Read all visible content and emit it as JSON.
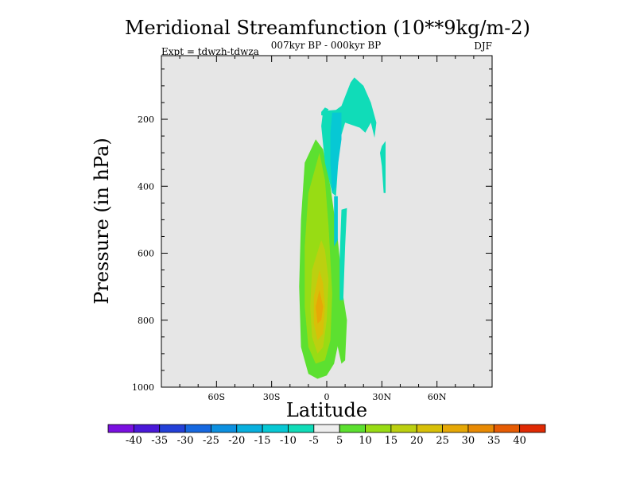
{
  "chart_data": {
    "type": "heatmap",
    "title": "Meridional Streamfunction (10**9kg/m-2)",
    "subtitle": "007kyr BP - 000kyr BP",
    "left_label": "Expt = tdwzh-tdwza",
    "right_label": "DJF",
    "xlabel": "Latitude",
    "ylabel": "Pressure (in hPa)",
    "xlim": [
      -90,
      90
    ],
    "ylim": [
      1000,
      10
    ],
    "y_reversed": true,
    "grid": false,
    "x_ticks": [
      {
        "value": -60,
        "label": "60S"
      },
      {
        "value": -30,
        "label": "30S"
      },
      {
        "value": 0,
        "label": "0"
      },
      {
        "value": 30,
        "label": "30N"
      },
      {
        "value": 60,
        "label": "60N"
      }
    ],
    "y_ticks": [
      {
        "value": 200,
        "label": "200"
      },
      {
        "value": 400,
        "label": "400"
      },
      {
        "value": 600,
        "label": "600"
      },
      {
        "value": 800,
        "label": "800"
      },
      {
        "value": 1000,
        "label": "1000"
      }
    ],
    "background_color": "#e6e6e6",
    "colorbar": {
      "labels": [
        "-40",
        "-35",
        "-30",
        "-25",
        "-20",
        "-15",
        "-10",
        "-5",
        "5",
        "10",
        "15",
        "20",
        "25",
        "30",
        "35",
        "40"
      ],
      "colors": [
        "#7a10e0",
        "#4a18d8",
        "#2340d8",
        "#1668e0",
        "#0c90e0",
        "#08b0de",
        "#07c8d4",
        "#10dcb8",
        "#eeeeee",
        "#5ce030",
        "#98dc14",
        "#bcd010",
        "#d8c008",
        "#e6a806",
        "#e88a04",
        "#e65c04",
        "#e02a04"
      ]
    },
    "regions": [
      {
        "level": "5 to 10",
        "color": "#5ce030",
        "points": [
          [
            -6,
            260
          ],
          [
            -12,
            330
          ],
          [
            -14,
            500
          ],
          [
            -15,
            700
          ],
          [
            -14,
            880
          ],
          [
            -10,
            960
          ],
          [
            -5,
            975
          ],
          [
            0,
            965
          ],
          [
            4,
            930
          ],
          [
            7,
            850
          ],
          [
            9,
            720
          ],
          [
            6,
            560
          ],
          [
            2,
            400
          ],
          [
            -2,
            290
          ]
        ]
      },
      {
        "level": "5 to 10",
        "color": "#5ce030",
        "points": [
          [
            5,
            755
          ],
          [
            9,
            730
          ],
          [
            11,
            800
          ],
          [
            10,
            920
          ],
          [
            8,
            930
          ],
          [
            6,
            880
          ],
          [
            4,
            820
          ]
        ]
      },
      {
        "level": "10 to 15",
        "color": "#98dc14",
        "points": [
          [
            -4,
            300
          ],
          [
            -10,
            420
          ],
          [
            -12,
            580
          ],
          [
            -12,
            760
          ],
          [
            -10,
            880
          ],
          [
            -6,
            930
          ],
          [
            -1,
            920
          ],
          [
            2,
            860
          ],
          [
            3,
            720
          ],
          [
            1,
            520
          ],
          [
            -1,
            380
          ]
        ]
      },
      {
        "level": "15 to 20",
        "color": "#bcd010",
        "points": [
          [
            -3,
            560
          ],
          [
            -8,
            650
          ],
          [
            -9,
            760
          ],
          [
            -8,
            850
          ],
          [
            -5,
            900
          ],
          [
            -2,
            880
          ],
          [
            0,
            800
          ],
          [
            1,
            680
          ],
          [
            -1,
            590
          ]
        ]
      },
      {
        "level": "20 to 25",
        "color": "#d8c008",
        "points": [
          [
            -4,
            650
          ],
          [
            -7,
            730
          ],
          [
            -7,
            810
          ],
          [
            -5,
            860
          ],
          [
            -2,
            840
          ],
          [
            -1,
            760
          ],
          [
            -2,
            690
          ]
        ]
      },
      {
        "level": "25 to 30",
        "color": "#e6a806",
        "points": [
          [
            -4,
            710
          ],
          [
            -6,
            760
          ],
          [
            -5,
            810
          ],
          [
            -3,
            800
          ],
          [
            -2,
            760
          ]
        ]
      },
      {
        "level": "-5 to -10",
        "color": "#10dcb8",
        "points": [
          [
            13,
            90
          ],
          [
            15,
            75
          ],
          [
            20,
            100
          ],
          [
            24,
            150
          ],
          [
            27,
            210
          ],
          [
            26,
            255
          ],
          [
            24,
            210
          ],
          [
            21,
            240
          ],
          [
            18,
            225
          ],
          [
            10,
            210
          ],
          [
            7,
            265
          ],
          [
            5,
            430
          ],
          [
            3,
            420
          ],
          [
            -1,
            330
          ],
          [
            -3,
            220
          ],
          [
            -2,
            175
          ],
          [
            5,
            172
          ],
          [
            8,
            160
          ]
        ]
      },
      {
        "level": "-5 to -10",
        "color": "#10dcb8",
        "points": [
          [
            -3,
            178
          ],
          [
            -1,
            165
          ],
          [
            1,
            170
          ],
          [
            -1,
            190
          ],
          [
            -3,
            188
          ]
        ]
      },
      {
        "level": "-5 to -10",
        "color": "#10dcb8",
        "points": [
          [
            8,
            470
          ],
          [
            11,
            465
          ],
          [
            10,
            580
          ],
          [
            9,
            740
          ],
          [
            7,
            740
          ],
          [
            7,
            620
          ]
        ]
      },
      {
        "level": "-5 to -10",
        "color": "#10dcb8",
        "points": [
          [
            30,
            280
          ],
          [
            32,
            265
          ],
          [
            32,
            420
          ],
          [
            31,
            420
          ],
          [
            30,
            340
          ],
          [
            29,
            300
          ]
        ]
      },
      {
        "level": "-10 to -15",
        "color": "#07c8d4",
        "points": [
          [
            3,
            180
          ],
          [
            8,
            180
          ],
          [
            8,
            260
          ],
          [
            6,
            340
          ],
          [
            5,
            400
          ],
          [
            3,
            420
          ],
          [
            2,
            330
          ],
          [
            2,
            240
          ]
        ]
      },
      {
        "level": "-10 to -15",
        "color": "#07c8d4",
        "points": [
          [
            4,
            430
          ],
          [
            6,
            430
          ],
          [
            6,
            560
          ],
          [
            4,
            580
          ]
        ]
      }
    ]
  }
}
